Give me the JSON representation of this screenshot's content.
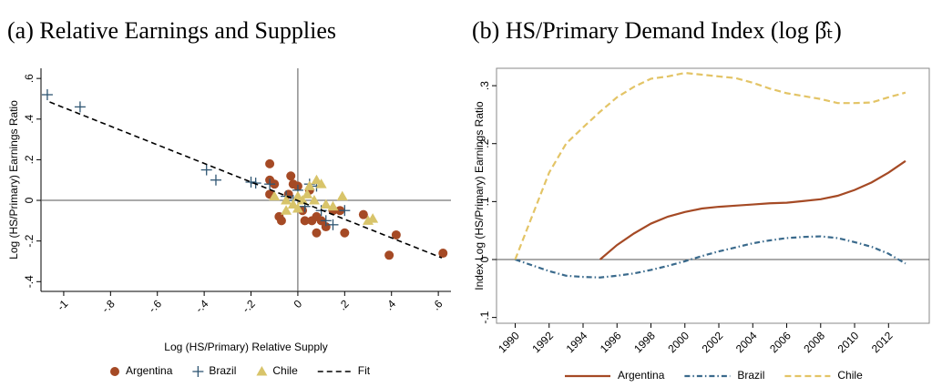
{
  "chart_data": [
    {
      "type": "scatter",
      "title": "(a) Relative Earnings and Supplies",
      "x_label": "Log (HS/Primary) Relative Supply",
      "y_label": "Log (HS/Primary) Earnings Ratio",
      "xlim": [
        -1.097,
        0.654
      ],
      "ylim": [
        -0.448,
        0.65
      ],
      "xticks": [
        -1,
        {
          "value": -0.8,
          "label": "-.8"
        },
        {
          "value": -0.6,
          "label": "-.6"
        },
        {
          "value": -0.4,
          "label": "-.4"
        },
        {
          "value": -0.2,
          "label": "-.2"
        },
        0,
        {
          "value": 0.2,
          "label": ".2"
        },
        {
          "value": 0.4,
          "label": ".4"
        },
        {
          "value": 0.6,
          "label": ".6"
        }
      ],
      "yticks": [
        {
          "value": -0.4,
          "label": "-.4"
        },
        {
          "value": -0.2,
          "label": "-.2"
        },
        0,
        {
          "value": 0.2,
          "label": ".2"
        },
        {
          "value": 0.4,
          "label": ".4"
        },
        {
          "value": 0.6,
          "label": ".6"
        }
      ],
      "zero_lines": [
        "x",
        "y"
      ],
      "series": [
        {
          "name": "Argentina",
          "color": "#a54a25",
          "marker": "circle",
          "x": [
            -0.12,
            -0.12,
            -0.1,
            -0.12,
            -0.08,
            -0.07,
            -0.03,
            -0.02,
            0.0,
            0.02,
            0.03,
            0.06,
            0.08,
            0.08,
            0.1,
            0.12,
            0.15,
            0.18,
            0.2,
            0.28,
            0.39,
            0.42,
            0.62,
            -0.04,
            0.05
          ],
          "values": [
            0.18,
            0.1,
            0.08,
            0.03,
            -0.08,
            -0.1,
            0.12,
            0.08,
            0.07,
            -0.05,
            -0.1,
            -0.1,
            -0.08,
            -0.16,
            -0.1,
            -0.13,
            -0.05,
            -0.05,
            -0.16,
            -0.07,
            -0.27,
            -0.17,
            -0.26,
            0.03,
            0.05
          ]
        },
        {
          "name": "Brazil",
          "color": "#2f5673",
          "marker": "plus",
          "x": [
            -1.07,
            -0.93,
            -0.39,
            -0.35,
            -0.2,
            -0.18,
            -0.12,
            -0.05,
            0.0,
            0.05,
            0.08,
            0.1,
            0.12,
            0.15,
            0.2,
            0.03,
            -0.02
          ],
          "values": [
            0.52,
            0.46,
            0.15,
            0.1,
            0.09,
            0.085,
            0.08,
            0.02,
            0.05,
            0.08,
            0.07,
            -0.05,
            -0.1,
            -0.12,
            -0.05,
            -0.03,
            0.0
          ]
        },
        {
          "name": "Chile",
          "color": "#d8c46a",
          "marker": "triangle",
          "x": [
            -0.05,
            -0.02,
            0.0,
            0.02,
            0.04,
            0.05,
            0.08,
            0.1,
            0.12,
            0.15,
            0.19,
            0.3,
            0.32,
            -0.05,
            0.0,
            0.07,
            -0.1
          ],
          "values": [
            0.0,
            -0.02,
            0.02,
            0.0,
            0.03,
            0.07,
            0.1,
            0.08,
            -0.02,
            -0.03,
            0.02,
            -0.1,
            -0.09,
            -0.05,
            -0.04,
            0.0,
            0.02
          ]
        },
        {
          "name": "Fit",
          "color": "#000000",
          "marker": "dash-line",
          "x": [
            -1.06,
            0.615
          ],
          "values": [
            0.484,
            -0.283
          ]
        }
      ]
    },
    {
      "type": "line",
      "title": "(b) HS/Primary Demand Index (log β̂ₜ)",
      "y_label": "Index Log (HS/Primary) Earnings Ratio",
      "frame": true,
      "xlim": [
        1988.9,
        2014.4
      ],
      "ylim": [
        -0.11,
        0.33
      ],
      "xticks": [
        1990,
        1992,
        1994,
        1996,
        1998,
        2000,
        2002,
        2004,
        2006,
        2008,
        2010,
        2012
      ],
      "yticks": [
        {
          "value": -0.1,
          "label": "-.1"
        },
        0,
        {
          "value": 0.1,
          "label": ".1"
        },
        {
          "value": 0.2,
          "label": ".2"
        },
        {
          "value": 0.3,
          "label": ".3"
        }
      ],
      "zero_lines": [
        "y"
      ],
      "x": [
        1990,
        1991,
        1992,
        1993,
        1994,
        1995,
        1996,
        1997,
        1998,
        1999,
        2000,
        2001,
        2002,
        2003,
        2004,
        2005,
        2006,
        2007,
        2008,
        2009,
        2010,
        2011,
        2012,
        2013
      ],
      "series": [
        {
          "name": "Argentina",
          "color": "#a54a25",
          "dash": "solid",
          "values": [
            null,
            null,
            null,
            null,
            null,
            0,
            0.025,
            0.045,
            0.062,
            0.074,
            0.082,
            0.088,
            0.091,
            0.093,
            0.095,
            0.097,
            0.098,
            0.101,
            0.104,
            0.11,
            0.12,
            0.133,
            0.15,
            0.17
          ]
        },
        {
          "name": "Brazil",
          "color": "#3a6a8c",
          "dash": "dashdot",
          "values": [
            0,
            -0.01,
            -0.02,
            -0.028,
            -0.03,
            -0.031,
            -0.028,
            -0.024,
            -0.018,
            -0.011,
            -0.003,
            0.006,
            0.014,
            0.021,
            0.028,
            0.033,
            0.037,
            0.039,
            0.04,
            0.037,
            0.03,
            0.022,
            0.01,
            -0.007
          ]
        },
        {
          "name": "Chile",
          "color": "#e3c466",
          "dash": "dashed",
          "values": [
            0,
            0.075,
            0.15,
            0.2,
            0.228,
            0.255,
            0.28,
            0.298,
            0.312,
            0.316,
            0.322,
            0.319,
            0.316,
            0.313,
            0.305,
            0.295,
            0.287,
            0.282,
            0.277,
            0.27,
            0.27,
            0.271,
            0.28,
            0.288
          ]
        }
      ]
    }
  ]
}
